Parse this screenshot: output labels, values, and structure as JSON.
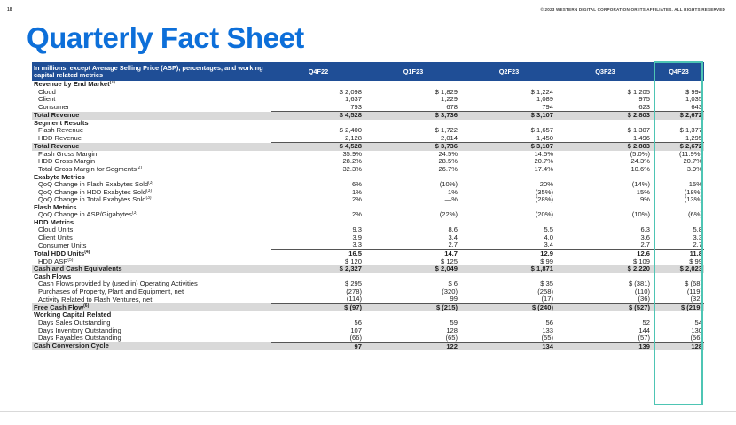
{
  "header": {
    "page_number": "18",
    "copyright": "© 2023 WESTERN DIGITAL CORPORATION OR ITS AFFILIATES. ALL RIGHTS RESERVED"
  },
  "title": "Quarterly Fact Sheet",
  "table": {
    "header_label": "In millions, except Average Selling Price (ASP), percentages, and working capital related metrics",
    "columns": [
      "Q4F22",
      "Q1F23",
      "Q2F23",
      "Q3F23",
      "Q4F23"
    ],
    "rows": [
      {
        "type": "sec",
        "label": "Revenue by End Market",
        "fn": "(1)",
        "values": []
      },
      {
        "type": "ind",
        "label": "Cloud",
        "values": [
          "$ 2,098",
          "$ 1,829",
          "$ 1,224",
          "$ 1,205",
          "$ 994"
        ]
      },
      {
        "type": "ind",
        "label": "Client",
        "values": [
          "1,637",
          "1,229",
          "1,089",
          "975",
          "1,035"
        ]
      },
      {
        "type": "ind ul",
        "label": "Consumer",
        "values": [
          "793",
          "678",
          "794",
          "623",
          "643"
        ]
      },
      {
        "type": "total",
        "label": "Total Revenue",
        "values": [
          "$ 4,528",
          "$ 3,736",
          "$ 3,107",
          "$ 2,803",
          "$ 2,672"
        ]
      },
      {
        "type": "sec",
        "label": "Segment Results",
        "values": []
      },
      {
        "type": "ind",
        "label": "Flash Revenue",
        "values": [
          "$ 2,400",
          "$ 1,722",
          "$ 1,657",
          "$ 1,307",
          "$ 1,377"
        ]
      },
      {
        "type": "ind ul",
        "label": "HDD Revenue",
        "values": [
          "2,128",
          "2,014",
          "1,450",
          "1,496",
          "1,295"
        ]
      },
      {
        "type": "total",
        "label": "Total Revenue",
        "values": [
          "$ 4,528",
          "$ 3,736",
          "$ 3,107",
          "$ 2,803",
          "$ 2,672"
        ]
      },
      {
        "type": "ind",
        "label": "Flash Gross Margin",
        "values": [
          "35.9%",
          "24.5%",
          "14.5%",
          "(5.0%)",
          "(11.9%)"
        ]
      },
      {
        "type": "ind",
        "label": "HDD Gross Margin",
        "values": [
          "28.2%",
          "28.5%",
          "20.7%",
          "24.3%",
          "20.7%"
        ]
      },
      {
        "type": "ind",
        "label": "Total Gross Margin for Segments",
        "fn": "(2)",
        "values": [
          "32.3%",
          "26.7%",
          "17.4%",
          "10.6%",
          "3.9%"
        ]
      },
      {
        "type": "sec",
        "label": "Exabyte Metrics",
        "values": []
      },
      {
        "type": "ind",
        "label": "QoQ Change in Flash Exabytes Sold",
        "fn": "(3)",
        "values": [
          "6%",
          "(10%)",
          "20%",
          "(14%)",
          "15%"
        ]
      },
      {
        "type": "ind",
        "label": "QoQ Change in HDD Exabytes Sold",
        "fn": "(3)",
        "values": [
          "1%",
          "1%",
          "(35%)",
          "15%",
          "(18%)"
        ]
      },
      {
        "type": "ind",
        "label": "QoQ Change in Total Exabytes Sold",
        "fn": "(3)",
        "values": [
          "2%",
          "—%",
          "(28%)",
          "9%",
          "(13%)"
        ]
      },
      {
        "type": "sec",
        "label": "Flash Metrics",
        "values": []
      },
      {
        "type": "ind",
        "label": "QoQ Change in ASP/Gigabytes",
        "fn": "(3)",
        "values": [
          "2%",
          "(22%)",
          "(20%)",
          "(10%)",
          "(6%)"
        ]
      },
      {
        "type": "sec",
        "label": "HDD Metrics",
        "values": []
      },
      {
        "type": "ind",
        "label": "Cloud Units",
        "values": [
          "9.3",
          "8.6",
          "5.5",
          "6.3",
          "5.8"
        ]
      },
      {
        "type": "ind",
        "label": "Client Units",
        "values": [
          "3.9",
          "3.4",
          "4.0",
          "3.6",
          "3.3"
        ]
      },
      {
        "type": "ind ul",
        "label": "Consumer Units",
        "values": [
          "3.3",
          "2.7",
          "3.4",
          "2.7",
          "2.7"
        ]
      },
      {
        "type": "bold",
        "label": "Total HDD Units",
        "fn": "(4)",
        "values": [
          "16.5",
          "14.7",
          "12.9",
          "12.6",
          "11.8"
        ]
      },
      {
        "type": "ind",
        "label": "HDD ASP",
        "fn": "(5)",
        "values": [
          "$ 120",
          "$ 125",
          "$ 99",
          "$ 109",
          "$ 99"
        ]
      },
      {
        "type": "total",
        "label": "Cash and Cash Equivalents",
        "values": [
          "$ 2,327",
          "$ 2,049",
          "$ 1,871",
          "$ 2,220",
          "$ 2,023"
        ]
      },
      {
        "type": "sec",
        "label": "Cash Flows",
        "values": []
      },
      {
        "type": "ind",
        "label": "Cash Flows provided by (used in) Operating Activities",
        "values": [
          "$ 295",
          "$ 6",
          "$ 35",
          "$ (381)",
          "$ (68)"
        ]
      },
      {
        "type": "ind",
        "label": "Purchases of Property, Plant and Equipment, net",
        "values": [
          "(278)",
          "(320)",
          "(258)",
          "(110)",
          "(119)"
        ]
      },
      {
        "type": "ind ul",
        "label": "Activity Related to Flash Ventures, net",
        "values": [
          "(114)",
          "99",
          "(17)",
          "(36)",
          "(32)"
        ]
      },
      {
        "type": "total",
        "label": "Free Cash Flow",
        "fn": "(6)",
        "values": [
          "$ (97)",
          "$ (215)",
          "$ (240)",
          "$ (527)",
          "$ (219)"
        ]
      },
      {
        "type": "sec",
        "label": "Working Capital Related",
        "values": []
      },
      {
        "type": "ind",
        "label": "Days Sales Outstanding",
        "values": [
          "56",
          "59",
          "56",
          "52",
          "54"
        ]
      },
      {
        "type": "ind",
        "label": "Days Inventory Outstanding",
        "values": [
          "107",
          "128",
          "133",
          "144",
          "130"
        ]
      },
      {
        "type": "ind ul",
        "label": "Days Payables Outstanding",
        "values": [
          "(66)",
          "(65)",
          "(55)",
          "(57)",
          "(56)"
        ]
      },
      {
        "type": "total",
        "label": "Cash Conversion Cycle",
        "values": [
          "97",
          "122",
          "134",
          "139",
          "128"
        ]
      }
    ]
  }
}
